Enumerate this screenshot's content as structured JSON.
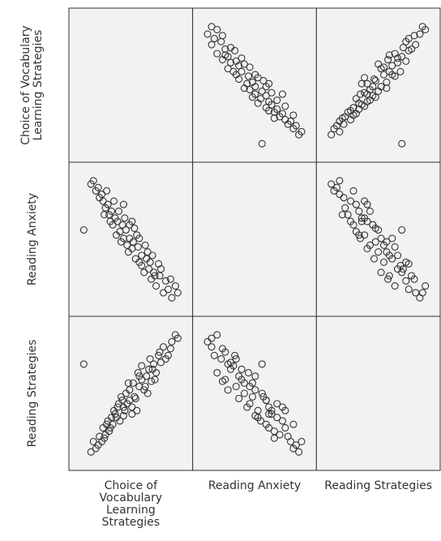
{
  "chart_data": {
    "type": "scatter_matrix",
    "variables": [
      "Choice of Vocabulary Learning Strategies",
      "Reading Anxiety",
      "Reading Strategies"
    ],
    "observations": [
      [
        12,
        55,
        75
      ],
      [
        85,
        15,
        88
      ],
      [
        82,
        20,
        80
      ],
      [
        78,
        18,
        85
      ],
      [
        88,
        22,
        92
      ],
      [
        80,
        25,
        78
      ],
      [
        75,
        28,
        82
      ],
      [
        72,
        22,
        70
      ],
      [
        70,
        30,
        75
      ],
      [
        68,
        26,
        65
      ],
      [
        74,
        35,
        80
      ],
      [
        66,
        32,
        72
      ],
      [
        64,
        38,
        68
      ],
      [
        62,
        30,
        60
      ],
      [
        60,
        40,
        66
      ],
      [
        58,
        36,
        62
      ],
      [
        65,
        42,
        58
      ],
      [
        57,
        45,
        70
      ],
      [
        55,
        38,
        55
      ],
      [
        53,
        48,
        64
      ],
      [
        52,
        44,
        50
      ],
      [
        50,
        50,
        60
      ],
      [
        48,
        46,
        52
      ],
      [
        56,
        52,
        48
      ],
      [
        47,
        55,
        58
      ],
      [
        45,
        50,
        45
      ],
      [
        44,
        58,
        54
      ],
      [
        42,
        54,
        42
      ],
      [
        40,
        60,
        50
      ],
      [
        38,
        62,
        46
      ],
      [
        36,
        58,
        40
      ],
      [
        35,
        66,
        44
      ],
      [
        33,
        64,
        36
      ],
      [
        32,
        70,
        42
      ],
      [
        30,
        68,
        34
      ],
      [
        28,
        72,
        38
      ],
      [
        27,
        76,
        30
      ],
      [
        25,
        74,
        33
      ],
      [
        24,
        80,
        28
      ],
      [
        22,
        78,
        26
      ],
      [
        20,
        84,
        30
      ],
      [
        18,
        82,
        24
      ],
      [
        60,
        34,
        74
      ],
      [
        63,
        46,
        62
      ],
      [
        69,
        40,
        72
      ],
      [
        71,
        28,
        66
      ],
      [
        54,
        56,
        56
      ],
      [
        49,
        42,
        64
      ],
      [
        46,
        62,
        48
      ],
      [
        43,
        48,
        56
      ],
      [
        41,
        66,
        52
      ],
      [
        39,
        52,
        44
      ],
      [
        37,
        72,
        48
      ],
      [
        34,
        60,
        38
      ],
      [
        31,
        78,
        40
      ],
      [
        29,
        64,
        32
      ],
      [
        50,
        58,
        54
      ],
      [
        58,
        50,
        68
      ],
      [
        67,
        36,
        78
      ],
      [
        76,
        32,
        76
      ],
      [
        84,
        26,
        84
      ],
      [
        90,
        18,
        90
      ],
      [
        52,
        60,
        46
      ],
      [
        45,
        70,
        50
      ]
    ]
  }
}
